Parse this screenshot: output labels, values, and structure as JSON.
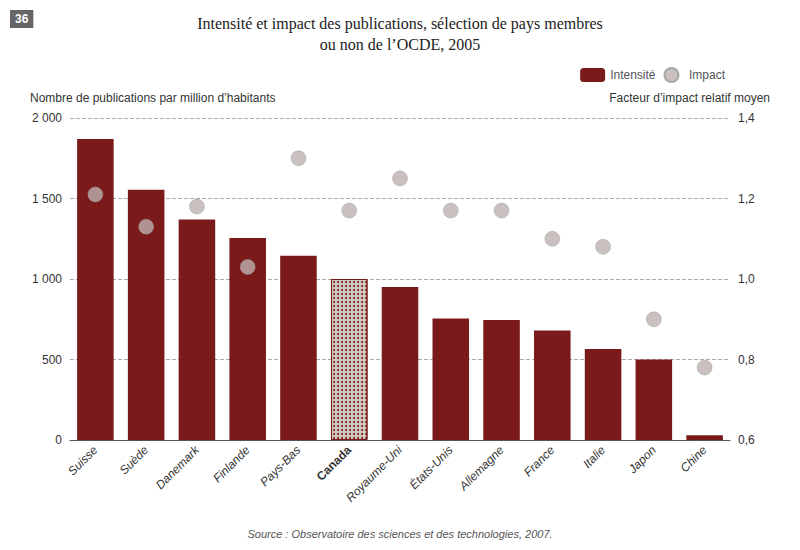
{
  "chart_data": {
    "type": "bar",
    "title": "Intensité et impact des publications, sélection de pays membres\nou non de l’OCDE, 2005",
    "ylabel": "Nombre de publications par million d’habitants",
    "y2label": "Facteur d’impact relatif moyen",
    "annotations": [
      "36",
      "Source : Observatoire des sciences et des technologies, 2007."
    ],
    "categories": [
      "Suisse",
      "Suède",
      "Danemark",
      "Finlande",
      "Pays-Bas",
      "Canada",
      "Royaume-Uni",
      "États-Unis",
      "Allemagne",
      "France",
      "Italie",
      "Japon",
      "Chine"
    ],
    "series": [
      {
        "name": "Intensité",
        "type": "bar",
        "color": "#7B1A1A",
        "colors": [
          "#7B1A1A",
          "#7B1A1A",
          "#7B1A1A",
          "#7B1A1A",
          "#7B1A1A",
          "#CFC9BF",
          "#7B1A1A",
          "#7B1A1A",
          "#7B1A1A",
          "#7B1A1A",
          "#7B1A1A",
          "#7B1A1A",
          "#7B1A1A"
        ],
        "values": [
          1870,
          1555,
          1370,
          1255,
          1145,
          1000,
          950,
          755,
          745,
          680,
          565,
          500,
          30
        ]
      },
      {
        "name": "Impact",
        "type": "scatter",
        "axis": "y2",
        "color": "#BEB0B0",
        "marker": "circle",
        "values": [
          1.21,
          1.13,
          1.18,
          1.03,
          1.3,
          1.17,
          1.25,
          1.17,
          1.17,
          1.1,
          1.08,
          0.9,
          0.78
        ]
      }
    ],
    "ylim": [
      0,
      2000
    ],
    "yticks": [
      0,
      500,
      {
        "value": 1000,
        "label": "1 000"
      },
      {
        "value": 1500,
        "label": "1 500"
      },
      {
        "value": 2000,
        "label": "2 000"
      }
    ],
    "y2lim": [
      0.6,
      1.4
    ],
    "y2ticks": [
      {
        "value": 0.6,
        "label": "0,6"
      },
      {
        "value": 0.8,
        "label": "0,8"
      },
      {
        "value": 1.0,
        "label": "1,0"
      },
      {
        "value": 1.2,
        "label": "1,2"
      },
      {
        "value": 1.4,
        "label": "1,4"
      }
    ],
    "grid": true,
    "legend": "upper right"
  }
}
